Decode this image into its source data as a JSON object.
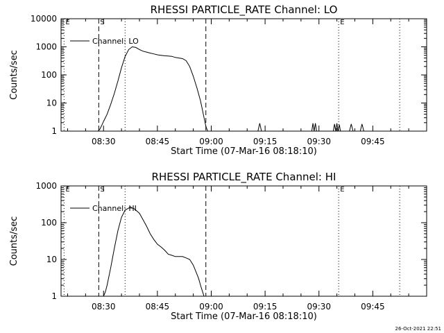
{
  "timestamp": "26-Oct-2021 22:51",
  "chart_data": [
    {
      "type": "line",
      "title": "RHESSI PARTICLE_RATE Channel: LO",
      "xlabel": "Start Time (07-Mar-16 08:18:10)",
      "ylabel": "Counts/sec",
      "yscale": "log",
      "ylim": [
        1,
        10000
      ],
      "xlim": [
        "08:18:10",
        "10:00:00"
      ],
      "x_ticks": [
        "08:30",
        "08:45",
        "09:00",
        "09:15",
        "09:30",
        "09:45"
      ],
      "y_ticks": [
        "1",
        "10",
        "100",
        "1000",
        "10000"
      ],
      "legend": {
        "label": "Channel: LO",
        "placement": "top-left"
      },
      "markers": [
        {
          "time": "08:19:00",
          "label": "E",
          "style": "dotted"
        },
        {
          "time": "08:28:40",
          "label": "S",
          "style": "dashed"
        },
        {
          "time": "08:36:00",
          "label": "",
          "style": "dotted"
        },
        {
          "time": "08:58:30",
          "label": "",
          "style": "dashed"
        },
        {
          "time": "09:35:30",
          "label": "E",
          "style": "dotted"
        },
        {
          "time": "09:52:30",
          "label": "",
          "style": "dotted"
        }
      ],
      "series": [
        {
          "name": "Channel: LO",
          "x": [
            "08:28:30",
            "08:29:00",
            "08:29:30",
            "08:30:00",
            "08:31:00",
            "08:32:00",
            "08:33:00",
            "08:34:00",
            "08:35:00",
            "08:36:00",
            "08:37:00",
            "08:38:00",
            "08:39:00",
            "08:40:00",
            "08:41:00",
            "08:42:00",
            "08:43:00",
            "08:44:00",
            "08:45:00",
            "08:46:00",
            "08:47:00",
            "08:48:00",
            "08:49:00",
            "08:50:00",
            "08:51:00",
            "08:52:00",
            "08:53:00",
            "08:54:00",
            "08:55:00",
            "08:56:00",
            "08:57:00",
            "08:57:30",
            "08:58:00",
            "08:58:30",
            "08:59:00",
            "09:13:00",
            "09:13:30",
            "09:14:00",
            "09:28:00",
            "09:28:20",
            "09:28:40",
            "09:29:00",
            "09:29:20",
            "09:34:00",
            "09:34:20",
            "09:34:40",
            "09:35:00",
            "09:35:20",
            "09:35:40",
            "09:36:00",
            "09:38:30",
            "09:39:00",
            "09:39:30",
            "09:41:30",
            "09:42:00",
            "09:42:30"
          ],
          "values": [
            1,
            1.2,
            1.6,
            2.2,
            4,
            9,
            22,
            60,
            180,
            450,
            800,
            1000,
            950,
            800,
            700,
            650,
            600,
            560,
            520,
            500,
            480,
            470,
            460,
            420,
            400,
            380,
            320,
            200,
            90,
            35,
            12,
            6,
            3,
            1.5,
            1,
            1,
            1.9,
            1,
            1,
            1.9,
            1,
            1.9,
            1,
            1,
            1.8,
            1,
            1.9,
            1,
            1.7,
            1,
            1,
            1.8,
            1,
            1,
            1.8,
            1
          ]
        }
      ]
    },
    {
      "type": "line",
      "title": "RHESSI PARTICLE_RATE Channel: HI",
      "xlabel": "Start Time (07-Mar-16 08:18:10)",
      "ylabel": "Counts/sec",
      "yscale": "log",
      "ylim": [
        1,
        1000
      ],
      "xlim": [
        "08:18:10",
        "10:00:00"
      ],
      "x_ticks": [
        "08:30",
        "08:45",
        "09:00",
        "09:15",
        "09:30",
        "09:45"
      ],
      "y_ticks": [
        "1",
        "10",
        "100",
        "1000"
      ],
      "legend": {
        "label": "Channel: HI",
        "placement": "top-left"
      },
      "markers": [
        {
          "time": "08:19:00",
          "label": "E",
          "style": "dotted"
        },
        {
          "time": "08:28:40",
          "label": "S",
          "style": "dashed"
        },
        {
          "time": "08:36:00",
          "label": "",
          "style": "dotted"
        },
        {
          "time": "08:58:30",
          "label": "",
          "style": "dashed"
        },
        {
          "time": "09:35:30",
          "label": "E",
          "style": "dotted"
        },
        {
          "time": "09:52:30",
          "label": "",
          "style": "dotted"
        }
      ],
      "series": [
        {
          "name": "Channel: HI",
          "x": [
            "08:30:00",
            "08:30:30",
            "08:31:00",
            "08:32:00",
            "08:33:00",
            "08:34:00",
            "08:35:00",
            "08:36:00",
            "08:37:00",
            "08:37:30",
            "08:38:00",
            "08:38:30",
            "08:39:00",
            "08:40:00",
            "08:41:00",
            "08:42:00",
            "08:43:00",
            "08:44:00",
            "08:45:00",
            "08:46:00",
            "08:47:00",
            "08:48:00",
            "08:49:00",
            "08:50:00",
            "08:51:00",
            "08:52:00",
            "08:53:00",
            "08:54:00",
            "08:55:00",
            "08:56:00",
            "08:56:30",
            "08:57:00",
            "08:57:30",
            "08:58:00"
          ],
          "values": [
            1,
            1.3,
            2,
            6,
            20,
            60,
            140,
            220,
            250,
            270,
            250,
            240,
            220,
            180,
            120,
            80,
            50,
            35,
            26,
            22,
            18,
            14,
            13,
            12,
            12,
            12,
            11,
            10,
            7,
            4,
            3,
            2,
            1.4,
            1
          ]
        }
      ]
    }
  ]
}
